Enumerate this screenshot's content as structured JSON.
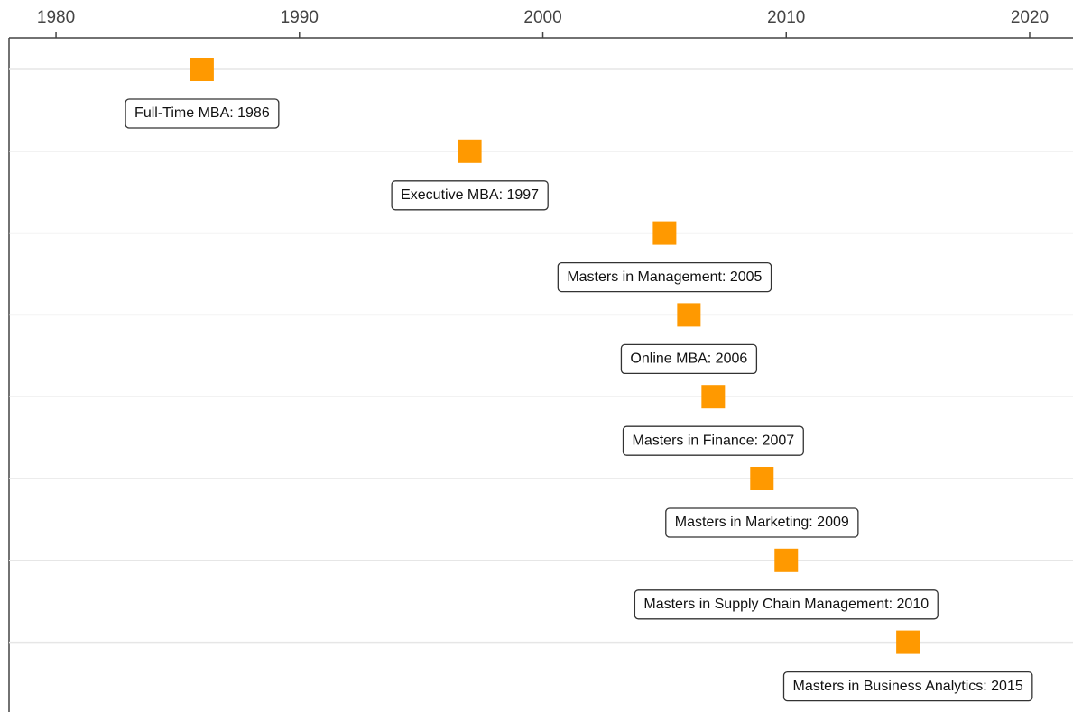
{
  "chart_data": {
    "type": "timeline",
    "values": [
      1986,
      1997,
      2005,
      2006,
      2007,
      2009,
      2010,
      2015
    ],
    "labels": [
      "Full-Time MBA: 1986",
      "Executive MBA: 1997",
      "Masters in Management: 2005",
      "Online MBA: 2006",
      "Masters in Finance: 2007",
      "Masters in Marketing: 2009",
      "Masters in Supply Chain Management: 2010",
      "Masters in Business Analytics: 2015"
    ],
    "color": "#ff9900",
    "xlim": [
      1978.07,
      2021.78
    ],
    "xticks": [
      1980,
      1990,
      2000,
      2010,
      2020
    ],
    "grid": true
  }
}
